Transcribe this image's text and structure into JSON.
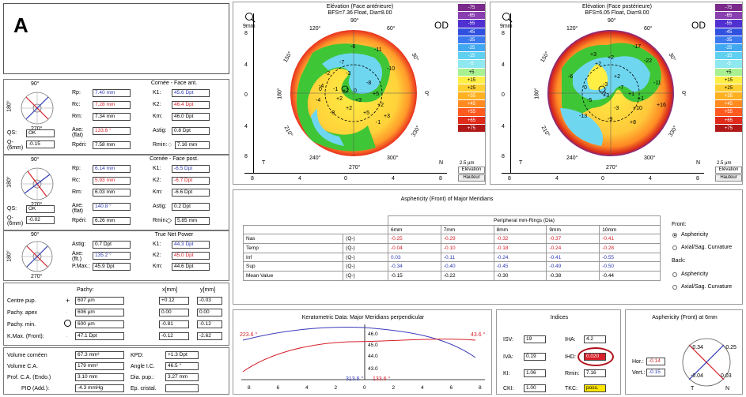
{
  "header": {
    "panel_letter": "A"
  },
  "cornea_front": {
    "title": "Cornée - Face ant.",
    "axis_top": "90°",
    "axis_left": "180°",
    "axis_bottom": "270°",
    "rows": [
      {
        "l1": "Rp:",
        "v1": "7.40 mm",
        "l2": "K1:",
        "v2": "45.6 Dpt"
      },
      {
        "l1": "Rc:",
        "v1": "7.28 mm",
        "l2": "K2:",
        "v2": "46.4 Dpt"
      },
      {
        "l1": "Rm:",
        "v1": "7.34 mm",
        "l2": "Km:",
        "v2": "46.0 Dpt"
      },
      {
        "l1": "Axe: (flat)",
        "v1": "133.6 °",
        "l2": "Astig:",
        "v2": "0.8 Dpt"
      },
      {
        "l1": "Rpéri:",
        "v1": "7.58 mm",
        "l2": "Rmin:",
        "v2": "7.16 mm"
      }
    ],
    "qs_label": "QS:",
    "qs_value": "OK",
    "q_label": "Q- (6mm)",
    "q_value": "-0.15"
  },
  "cornea_back": {
    "title": "Cornée - Face post.",
    "axis_top": "90°",
    "axis_left": "180°",
    "axis_bottom": "270°",
    "rows": [
      {
        "l1": "Rp:",
        "v1": "6.14 mm",
        "l2": "K1:",
        "v2": "-6.5 Dpt"
      },
      {
        "l1": "Rc:",
        "v1": "5.93 mm",
        "l2": "K2:",
        "v2": "-6.7 Dpt"
      },
      {
        "l1": "Rm:",
        "v1": "6.03 mm",
        "l2": "Km:",
        "v2": "-6.6 Dpt"
      },
      {
        "l1": "Axe: (flat)",
        "v1": "140.8 °",
        "l2": "Astig:",
        "v2": "0.2 Dpt"
      },
      {
        "l1": "Rpéri:",
        "v1": "6.26 mm",
        "l2": "Rmin:",
        "v2": "5.85 mm"
      }
    ],
    "qs_label": "QS:",
    "qs_value": "OK",
    "q_label": "Q- (6mm)",
    "q_value": "-0.02"
  },
  "net_power": {
    "title": "True Net Power",
    "axis_top": "90°",
    "axis_left": "180°",
    "axis_bottom": "270°",
    "rows": [
      {
        "l1": "Astig:",
        "v1": "0.7 Dpt",
        "l2": "K1:",
        "v2": "44.3 Dpt"
      },
      {
        "l1": "Axe: (flt.)",
        "v1": "135.2 °",
        "l2": "K2:",
        "v2": "45.0 Dpt"
      },
      {
        "l1": "P.Max.:",
        "v1": "45.9 Dpt",
        "l2": "Km:",
        "v2": "44.6 Dpt"
      }
    ]
  },
  "pachy": {
    "headers": [
      "Pachy:",
      "x[mm]",
      "y[mm]"
    ],
    "rows": [
      {
        "label": "Centre pup.",
        "v": "607 µm",
        "x": "+0.12",
        "y": "-0.03"
      },
      {
        "label": "Pachy. apex",
        "v": "606 µm",
        "x": "0.00",
        "y": "0.00"
      },
      {
        "label": "Pachy. min.",
        "v": "600 µm",
        "x": "-0.81",
        "y": "-0.12"
      },
      {
        "label": "K.Max. (Front):",
        "v": "47.1 Dpt",
        "x": "-0.12",
        "y": "-2.62"
      }
    ]
  },
  "volumes": {
    "rows": [
      {
        "l1": "Volume cornéen",
        "v1": "67.3 mm³",
        "l2": "KPD:",
        "v2": "+1.3 Dpt"
      },
      {
        "l1": "Volume C.A.",
        "v1": "179 mm³",
        "l2": "Angle I.C.",
        "v2": "46.5 °"
      },
      {
        "l1": "Prof. C.A. (Endo.)",
        "v1": "3.10 mm",
        "l2": "Dia. pup.:",
        "v2": "3.27 mm"
      },
      {
        "l1": "PIO (Add.):",
        "v1": "-4.3 mmHg",
        "l2": "Ep. cristal.",
        "v2": ""
      }
    ]
  },
  "map_front": {
    "title": "Elévation (Face antérieure)",
    "bfs": "BFS=7.36 Float, Dia=8.00",
    "eye": "OD",
    "zoom": "9mm",
    "T": "T",
    "N": "N",
    "deg90": "90°",
    "deg270": "270°",
    "angles": [
      "120°",
      "60°",
      "150°",
      "30°",
      "180°",
      "0°",
      "210°",
      "330°",
      "240°",
      "300°"
    ],
    "values": [
      "-6",
      "-11",
      "-7",
      "-10",
      "-2",
      "-3",
      "-8",
      "+2",
      "-4",
      "0",
      "-1",
      "0",
      "+5",
      "-4",
      "+2",
      "+3",
      "+2",
      "+2",
      "-3",
      "+5",
      "+3",
      "-1"
    ],
    "xticks": [
      "8",
      "4",
      "0",
      "4",
      "8"
    ],
    "yticks": [
      "8",
      "4",
      "0",
      "4",
      "8"
    ],
    "scale": [
      "-75",
      "-65",
      "-55",
      "-45",
      "-35",
      "-25",
      "-15",
      "-5",
      "+5",
      "+15",
      "+25",
      "+35",
      "+45",
      "+55",
      "+65",
      "+75"
    ],
    "scale_unit": "2.5 µm",
    "scale_label1": "Elévation",
    "scale_label2": "Hauteur"
  },
  "map_back": {
    "title": "Elévation (Face postérieure)",
    "bfs": "BFS=6.05 Float, Dia=8.00",
    "eye": "OD",
    "zoom": "9mm",
    "T": "T",
    "N": "N",
    "deg90": "90°",
    "deg270": "270°",
    "angles": [
      "120°",
      "60°",
      "150°",
      "30°",
      "180°",
      "0°",
      "210°",
      "330°",
      "240°",
      "300°"
    ],
    "values": [
      "-17",
      "-22",
      "+3",
      "+2",
      "-6",
      "-11",
      "+2",
      "-3",
      "0",
      "-7",
      "+3",
      "+1",
      "+1",
      "-5",
      "+10",
      "+16",
      "-13",
      "-9",
      "-3",
      "+8",
      "-2",
      "+2"
    ],
    "xticks": [
      "8",
      "4",
      "0",
      "4",
      "8"
    ],
    "yticks": [
      "8",
      "4",
      "0",
      "4",
      "8"
    ],
    "scale": [
      "-75",
      "-65",
      "-55",
      "-45",
      "-35",
      "-25",
      "-15",
      "-5",
      "+5",
      "+15",
      "+25",
      "+35",
      "+45",
      "+55",
      "+65",
      "+75"
    ],
    "scale_unit": "2.5 µm",
    "scale_label1": "Elévation",
    "scale_label2": "Hauteur"
  },
  "asphericity": {
    "title": "Asphericity (Front) of Major Meridians",
    "group_header": "Peripheral mm-Rings (Dia)",
    "columns": [
      "6mm",
      "7mm",
      "8mm",
      "9mm",
      "10mm"
    ],
    "rows": [
      {
        "name": "Nas",
        "q": "(Q-)",
        "vals": [
          "-0.25",
          "-0.29",
          "-0.32",
          "-0.37",
          "-0.41"
        ],
        "color": "red"
      },
      {
        "name": "Temp",
        "q": "(Q-)",
        "vals": [
          "-0.04",
          "-0.10",
          "-0.18",
          "-0.24",
          "-0.28"
        ],
        "color": "red"
      },
      {
        "name": "Inf",
        "q": "(Q-)",
        "vals": [
          "0.03",
          "-0.11",
          "-0.24",
          "-0.41",
          "-0.55"
        ],
        "color": "blue"
      },
      {
        "name": "Sup",
        "q": "(Q-)",
        "vals": [
          "-0.34",
          "-0.40",
          "-0.45",
          "-0.49",
          "-0.50"
        ],
        "color": "blue"
      },
      {
        "name": "Mean Value",
        "q": "(Q-)",
        "vals": [
          "-0.15",
          "-0.22",
          "-0.30",
          "-0.38",
          "-0.44"
        ],
        "color": "black"
      }
    ],
    "front_label": "Front:",
    "opt1": "Asphericity",
    "opt2": "Axial/Sag. Curvature",
    "back_label": "Back:",
    "opt3": "Asphericity",
    "opt4": "Axial/Sag. Curvature"
  },
  "kerato": {
    "title": "Keratometric Data: Major Meridians perpendicular",
    "left_angle": "223.6 °",
    "right_angle": "43.6 °",
    "bottom_left": "313.6 °",
    "bottom_right": "133.6 °",
    "yticks": [
      "46.0",
      "45.0",
      "44.0",
      "43.0"
    ],
    "xticks": [
      "8",
      "6",
      "4",
      "2",
      "0",
      "2",
      "4",
      "6",
      "8"
    ]
  },
  "indices": {
    "title": "Indices",
    "items": [
      {
        "l": "ISV:",
        "v": "19"
      },
      {
        "l": "IHA:",
        "v": "4.2"
      },
      {
        "l": "IVA:",
        "v": "0.19"
      },
      {
        "l": "IHD:",
        "v": "0.020"
      },
      {
        "l": "KI:",
        "v": "1.06"
      },
      {
        "l": "Rmin:",
        "v": "7.16"
      },
      {
        "l": "CKI:",
        "v": "1.00"
      },
      {
        "l": "TKC:",
        "v": "poss."
      }
    ]
  },
  "asph6": {
    "title": "Asphericity (Front) at 6mm",
    "hor_label": "Hor.:",
    "hor": "-0.14",
    "vert_label": "Vert.:",
    "vert": "-0.15",
    "v1": "-0.34",
    "v2": "-0.25",
    "v3": "-0.04",
    "v4": "0.03",
    "T": "T",
    "N": "N"
  },
  "colors": {
    "accent_red": "#d6202a",
    "accent_blue": "#2e3ab5",
    "highlight": "#ffe600"
  }
}
